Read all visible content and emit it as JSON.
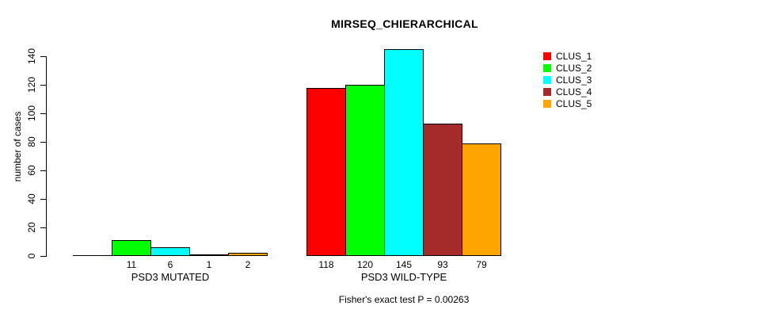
{
  "chart_data": {
    "type": "bar",
    "title": "MIRSEQ_CHIERARCHICAL",
    "ylabel": "number of cases",
    "xlabel": "",
    "ylim": [
      0,
      145
    ],
    "yticks": [
      0,
      20,
      40,
      60,
      80,
      100,
      120,
      140
    ],
    "grid": false,
    "legend_position": "right",
    "annotation": "Fisher's exact test P = 0.00263",
    "categories": [
      "PSD3 MUTATED",
      "PSD3 WILD-TYPE"
    ],
    "series": [
      {
        "name": "CLUS_1",
        "color": "#FF0000",
        "values": [
          0,
          118
        ]
      },
      {
        "name": "CLUS_2",
        "color": "#00FF00",
        "values": [
          11,
          120
        ]
      },
      {
        "name": "CLUS_3",
        "color": "#00FFFF",
        "values": [
          6,
          145
        ]
      },
      {
        "name": "CLUS_4",
        "color": "#A52A2A",
        "values": [
          1,
          93
        ]
      },
      {
        "name": "CLUS_5",
        "color": "#FFA500",
        "values": [
          2,
          79
        ]
      }
    ],
    "bar_value_labels_shown": true,
    "hide_zero_value_labels": true,
    "axis_color": "#000000",
    "bar_border_color": "#000000",
    "background_color": "#FFFFFF"
  }
}
